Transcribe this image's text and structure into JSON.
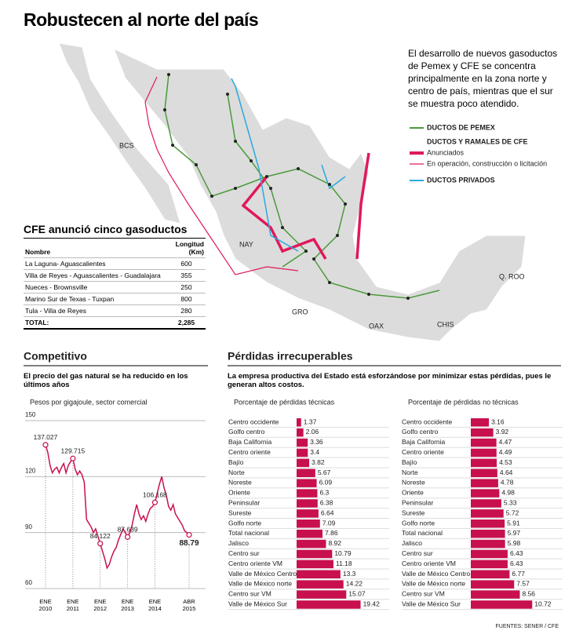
{
  "title": "Robustecen al norte del país",
  "intro": "El desarrollo de nuevos gasoductos de Pemex y CFE se concentra principalmente en la zona norte y centro de país, mientras que el sur se muestra poco atendido.",
  "legend": {
    "pemex": "DUCTOS DE PEMEX",
    "cfe": "DUCTOS Y RAMALES DE CFE",
    "announced": "Anunciados",
    "operating": "En operación, construcción o licitación",
    "private": "DUCTOS PRIVADOS"
  },
  "map_labels": [
    "BCS",
    "NAY",
    "GRO",
    "OAX",
    "CHIS",
    "Q. ROO"
  ],
  "table": {
    "title": "CFE anunció cinco gasoductos",
    "headers": [
      "Nombre",
      "Longitud (Km)"
    ],
    "rows": [
      [
        "La Laguna- Aguascalientes",
        600
      ],
      [
        "Villa de Reyes - Aguascalientes - Guadalajara",
        355
      ],
      [
        "Nueces - Brownsville",
        250
      ],
      [
        "Marino Sur de Texas - Tuxpan",
        800
      ],
      [
        "Tula - Villa de Reyes",
        280
      ]
    ],
    "total": [
      "TOTAL:",
      "2,285"
    ]
  },
  "sections": {
    "left": "Competitivo",
    "right": "Pérdidas irrecuperables"
  },
  "chart_data": [
    {
      "type": "line",
      "subtitle": "El precio del gas natural  se ha reducido en los últimos años",
      "axis_note": "Pesos por gigajoule, sector comercial",
      "categories": [
        "ENE 2010",
        null,
        null,
        null,
        null,
        null,
        null,
        null,
        null,
        null,
        null,
        null,
        "ENE 2011",
        null,
        null,
        null,
        null,
        null,
        null,
        null,
        null,
        null,
        null,
        null,
        "ENE 2012",
        null,
        null,
        null,
        null,
        null,
        null,
        null,
        null,
        null,
        null,
        null,
        "ENE 2013",
        null,
        null,
        null,
        null,
        null,
        null,
        null,
        null,
        null,
        null,
        null,
        "ENE 2014",
        null,
        null,
        null,
        null,
        null,
        null,
        null,
        null,
        null,
        null,
        null,
        null,
        null,
        null,
        "ABR 2015"
      ],
      "values": [
        137.027,
        133,
        126,
        122,
        124,
        125,
        122,
        125,
        127,
        122,
        126,
        128,
        129.715,
        124,
        121,
        123,
        121,
        117,
        97,
        95,
        93,
        90,
        92,
        88,
        84.122,
        80,
        76,
        71,
        73,
        77,
        80,
        82,
        86,
        89,
        92,
        90,
        87.639,
        90,
        94,
        100,
        105,
        100,
        97,
        99,
        96,
        100,
        103,
        104,
        106.168,
        111,
        116,
        120,
        114,
        110,
        104,
        102,
        105,
        100,
        98,
        96,
        94,
        91,
        90,
        88.79
      ],
      "value_labels": [
        "137.027",
        null,
        null,
        null,
        null,
        null,
        null,
        null,
        null,
        null,
        null,
        null,
        "129.715",
        null,
        null,
        null,
        null,
        null,
        null,
        null,
        null,
        null,
        null,
        null,
        "84.122",
        null,
        null,
        null,
        null,
        null,
        null,
        null,
        null,
        null,
        null,
        null,
        "87.639",
        null,
        null,
        null,
        null,
        null,
        null,
        null,
        null,
        null,
        null,
        null,
        "106.168",
        null,
        null,
        null,
        null,
        null,
        null,
        null,
        null,
        null,
        null,
        null,
        null,
        null,
        null,
        "88.79"
      ],
      "color": "#c8104e",
      "ylim": [
        60,
        150
      ],
      "yticks": [
        60,
        90,
        120,
        150
      ],
      "grid": true
    },
    {
      "type": "bar",
      "subtitle": "La empresa productiva del Estado está esforzándose por minimizar estas pérdidas, pues le generan altos costos.",
      "title": "Porcentaje de pérdidas técnicas",
      "color": "#c8104e",
      "categories": [
        "Centro occidente",
        "Golfo centro",
        "Baja California",
        "Centro oriente",
        "Bajío",
        "Norte",
        "Noreste",
        "Oriente",
        "Peninsular",
        "Sureste",
        "Golfo norte",
        "Total nacional",
        "Jalisco",
        "Centro sur",
        "Centro oriente VM",
        "Valle de México Centro",
        "Valle de México norte",
        "Centro sur VM",
        "Valle de México Sur"
      ],
      "values": [
        1.37,
        2.06,
        3.36,
        3.4,
        3.82,
        5.67,
        6.09,
        6.3,
        6.38,
        6.64,
        7.09,
        7.86,
        8.92,
        10.79,
        11.18,
        13.3,
        14.22,
        15.07,
        19.42
      ]
    },
    {
      "type": "bar",
      "title": "Porcentaje de pérdidas no técnicas",
      "color": "#c8104e",
      "categories": [
        "Centro occidente",
        "Golfo centro",
        "Baja California",
        "Centro oriente",
        "Bajío",
        "Norte",
        "Noreste",
        "Oriente",
        "Peninsular",
        "Sureste",
        "Golfo norte",
        "Total nacional",
        "Jalisco",
        "Centro sur",
        "Centro oriente VM",
        "Valle de México Centro",
        "Valle de México norte",
        "Centro sur VM",
        "Valle de México Sur"
      ],
      "values": [
        3.16,
        3.92,
        4.47,
        4.49,
        4.53,
        4.64,
        4.78,
        4.98,
        5.33,
        5.72,
        5.91,
        5.97,
        5.98,
        6.43,
        6.43,
        6.77,
        7.57,
        8.56,
        10.72
      ]
    }
  ],
  "source": "FUENTES: SENER / CFE"
}
